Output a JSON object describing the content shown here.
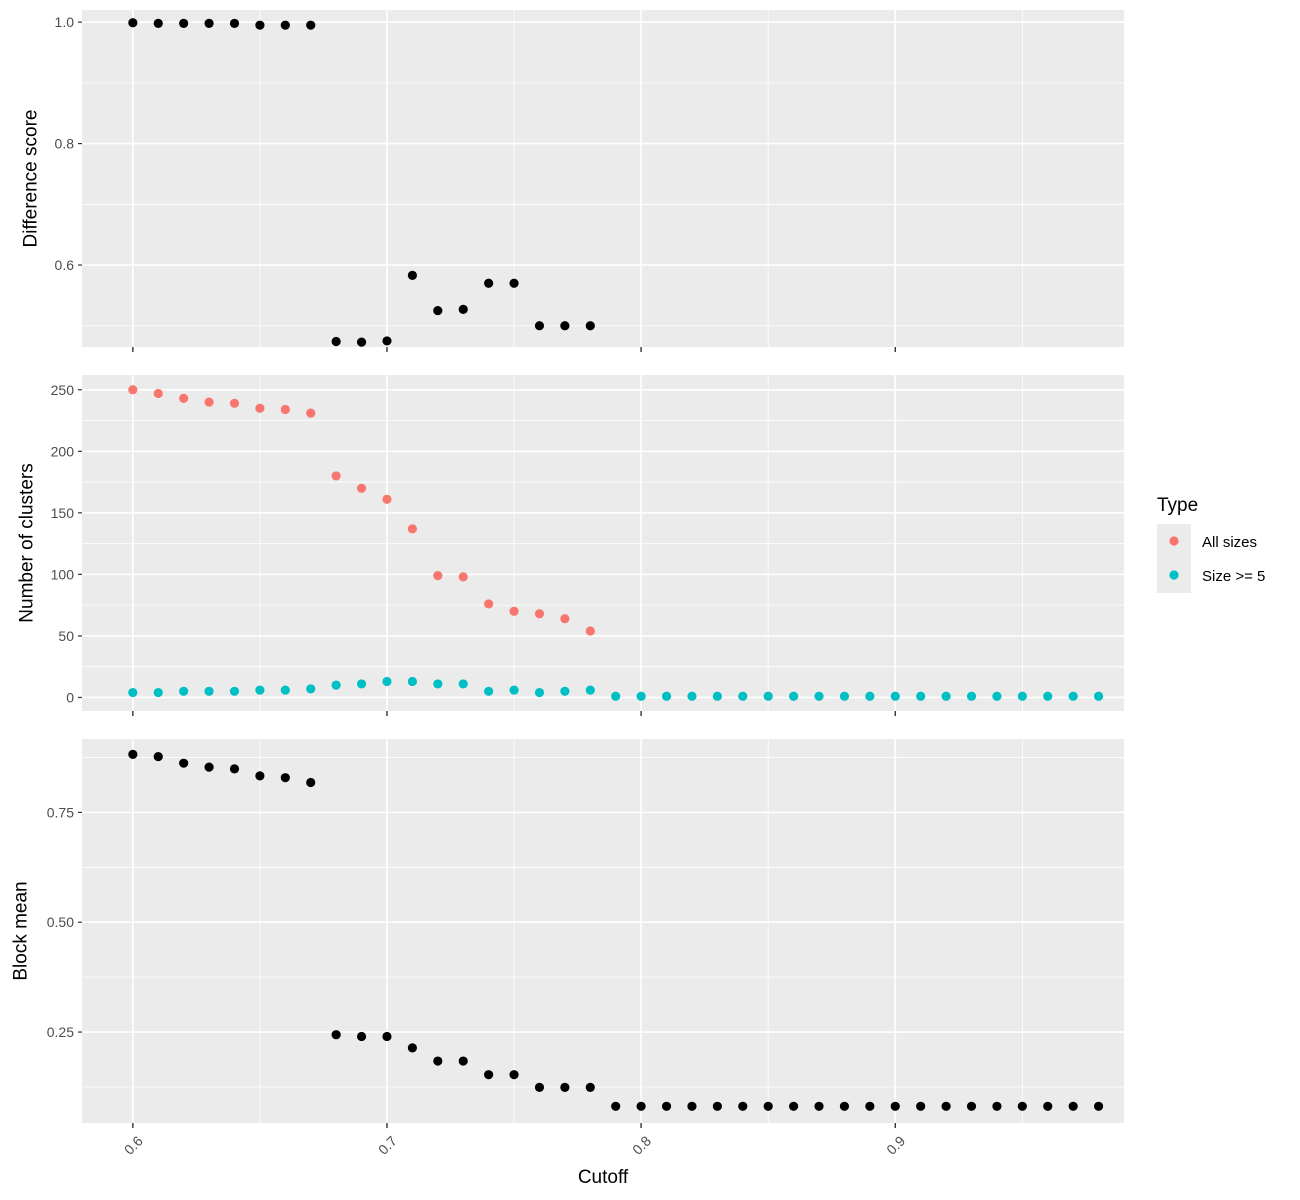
{
  "chart_data": [
    {
      "type": "scatter",
      "panel": "top",
      "title": "",
      "xlabel": "",
      "ylabel": "Difference score",
      "xlim": [
        0.58,
        0.99
      ],
      "ylim": [
        0.465,
        1.02
      ],
      "x_ticks": [
        0.6,
        0.7,
        0.8,
        0.9
      ],
      "y_ticks": [
        0.6,
        0.8,
        1.0
      ],
      "y_tick_labels": [
        "0.6",
        "0.8",
        "1.0"
      ],
      "grid": true,
      "series": [
        {
          "color": "#000000",
          "x": [
            0.6,
            0.61,
            0.62,
            0.63,
            0.64,
            0.65,
            0.66,
            0.67,
            0.68,
            0.69,
            0.7,
            0.71,
            0.72,
            0.73,
            0.74,
            0.75,
            0.76,
            0.77,
            0.78
          ],
          "y": [
            0.999,
            0.998,
            0.998,
            0.998,
            0.998,
            0.995,
            0.995,
            0.995,
            0.474,
            0.473,
            0.475,
            0.583,
            0.525,
            0.527,
            0.57,
            0.57,
            0.5,
            0.5,
            0.5
          ]
        }
      ]
    },
    {
      "type": "scatter",
      "panel": "middle",
      "title": "",
      "xlabel": "",
      "ylabel": "Number of clusters",
      "xlim": [
        0.58,
        0.99
      ],
      "ylim": [
        -11,
        262
      ],
      "x_ticks": [
        0.6,
        0.7,
        0.8,
        0.9
      ],
      "y_ticks": [
        0,
        50,
        100,
        150,
        200,
        250
      ],
      "y_tick_labels": [
        "0",
        "50",
        "100",
        "150",
        "200",
        "250"
      ],
      "grid": true,
      "legend_position": "right",
      "series": [
        {
          "name": "All sizes",
          "color": "#F8766D",
          "x": [
            0.6,
            0.61,
            0.62,
            0.63,
            0.64,
            0.65,
            0.66,
            0.67,
            0.68,
            0.69,
            0.7,
            0.71,
            0.72,
            0.73,
            0.74,
            0.75,
            0.76,
            0.77,
            0.78
          ],
          "y": [
            250,
            247,
            243,
            240,
            239,
            235,
            234,
            231,
            180,
            170,
            161,
            137,
            99,
            98,
            76,
            70,
            68,
            64,
            54
          ]
        },
        {
          "name": "Size >= 5",
          "color": "#00BFC4",
          "x": [
            0.6,
            0.61,
            0.62,
            0.63,
            0.64,
            0.65,
            0.66,
            0.67,
            0.68,
            0.69,
            0.7,
            0.71,
            0.72,
            0.73,
            0.74,
            0.75,
            0.76,
            0.77,
            0.78,
            0.79,
            0.8,
            0.81,
            0.82,
            0.83,
            0.84,
            0.85,
            0.86,
            0.87,
            0.88,
            0.89,
            0.9,
            0.91,
            0.92,
            0.93,
            0.94,
            0.95,
            0.96,
            0.97,
            0.98
          ],
          "y": [
            4,
            4,
            5,
            5,
            5,
            6,
            6,
            7,
            10,
            11,
            13,
            13,
            11,
            11,
            5,
            6,
            4,
            5,
            6,
            1,
            1,
            1,
            1,
            1,
            1,
            1,
            1,
            1,
            1,
            1,
            1,
            1,
            1,
            1,
            1,
            1,
            1,
            1,
            1
          ]
        }
      ]
    },
    {
      "type": "scatter",
      "panel": "bottom",
      "title": "",
      "xlabel": "Cutoff",
      "ylabel": "Block mean",
      "xlim": [
        0.58,
        0.99
      ],
      "ylim": [
        0.043,
        0.917
      ],
      "x_ticks": [
        0.6,
        0.7,
        0.8,
        0.9
      ],
      "x_tick_labels": [
        "0.6",
        "0.7",
        "0.8",
        "0.9"
      ],
      "y_ticks": [
        0.25,
        0.5,
        0.75
      ],
      "y_tick_labels": [
        "0.25",
        "0.50",
        "0.75"
      ],
      "grid": true,
      "series": [
        {
          "color": "#000000",
          "x": [
            0.6,
            0.61,
            0.62,
            0.63,
            0.64,
            0.65,
            0.66,
            0.67,
            0.68,
            0.69,
            0.7,
            0.71,
            0.72,
            0.73,
            0.74,
            0.75,
            0.76,
            0.77,
            0.78,
            0.79,
            0.8,
            0.81,
            0.82,
            0.83,
            0.84,
            0.85,
            0.86,
            0.87,
            0.88,
            0.89,
            0.9,
            0.91,
            0.92,
            0.93,
            0.94,
            0.95,
            0.96,
            0.97,
            0.98
          ],
          "y": [
            0.882,
            0.877,
            0.862,
            0.853,
            0.849,
            0.833,
            0.829,
            0.818,
            0.244,
            0.24,
            0.24,
            0.214,
            0.184,
            0.184,
            0.153,
            0.153,
            0.124,
            0.124,
            0.124,
            0.081,
            0.081,
            0.081,
            0.081,
            0.081,
            0.081,
            0.081,
            0.081,
            0.081,
            0.081,
            0.081,
            0.081,
            0.081,
            0.081,
            0.081,
            0.081,
            0.081,
            0.081,
            0.081,
            0.081
          ]
        }
      ]
    }
  ],
  "legend": {
    "title": "Type",
    "items": [
      {
        "label": "All sizes",
        "color": "#F8766D"
      },
      {
        "label": "Size >= 5",
        "color": "#00BFC4"
      }
    ]
  }
}
